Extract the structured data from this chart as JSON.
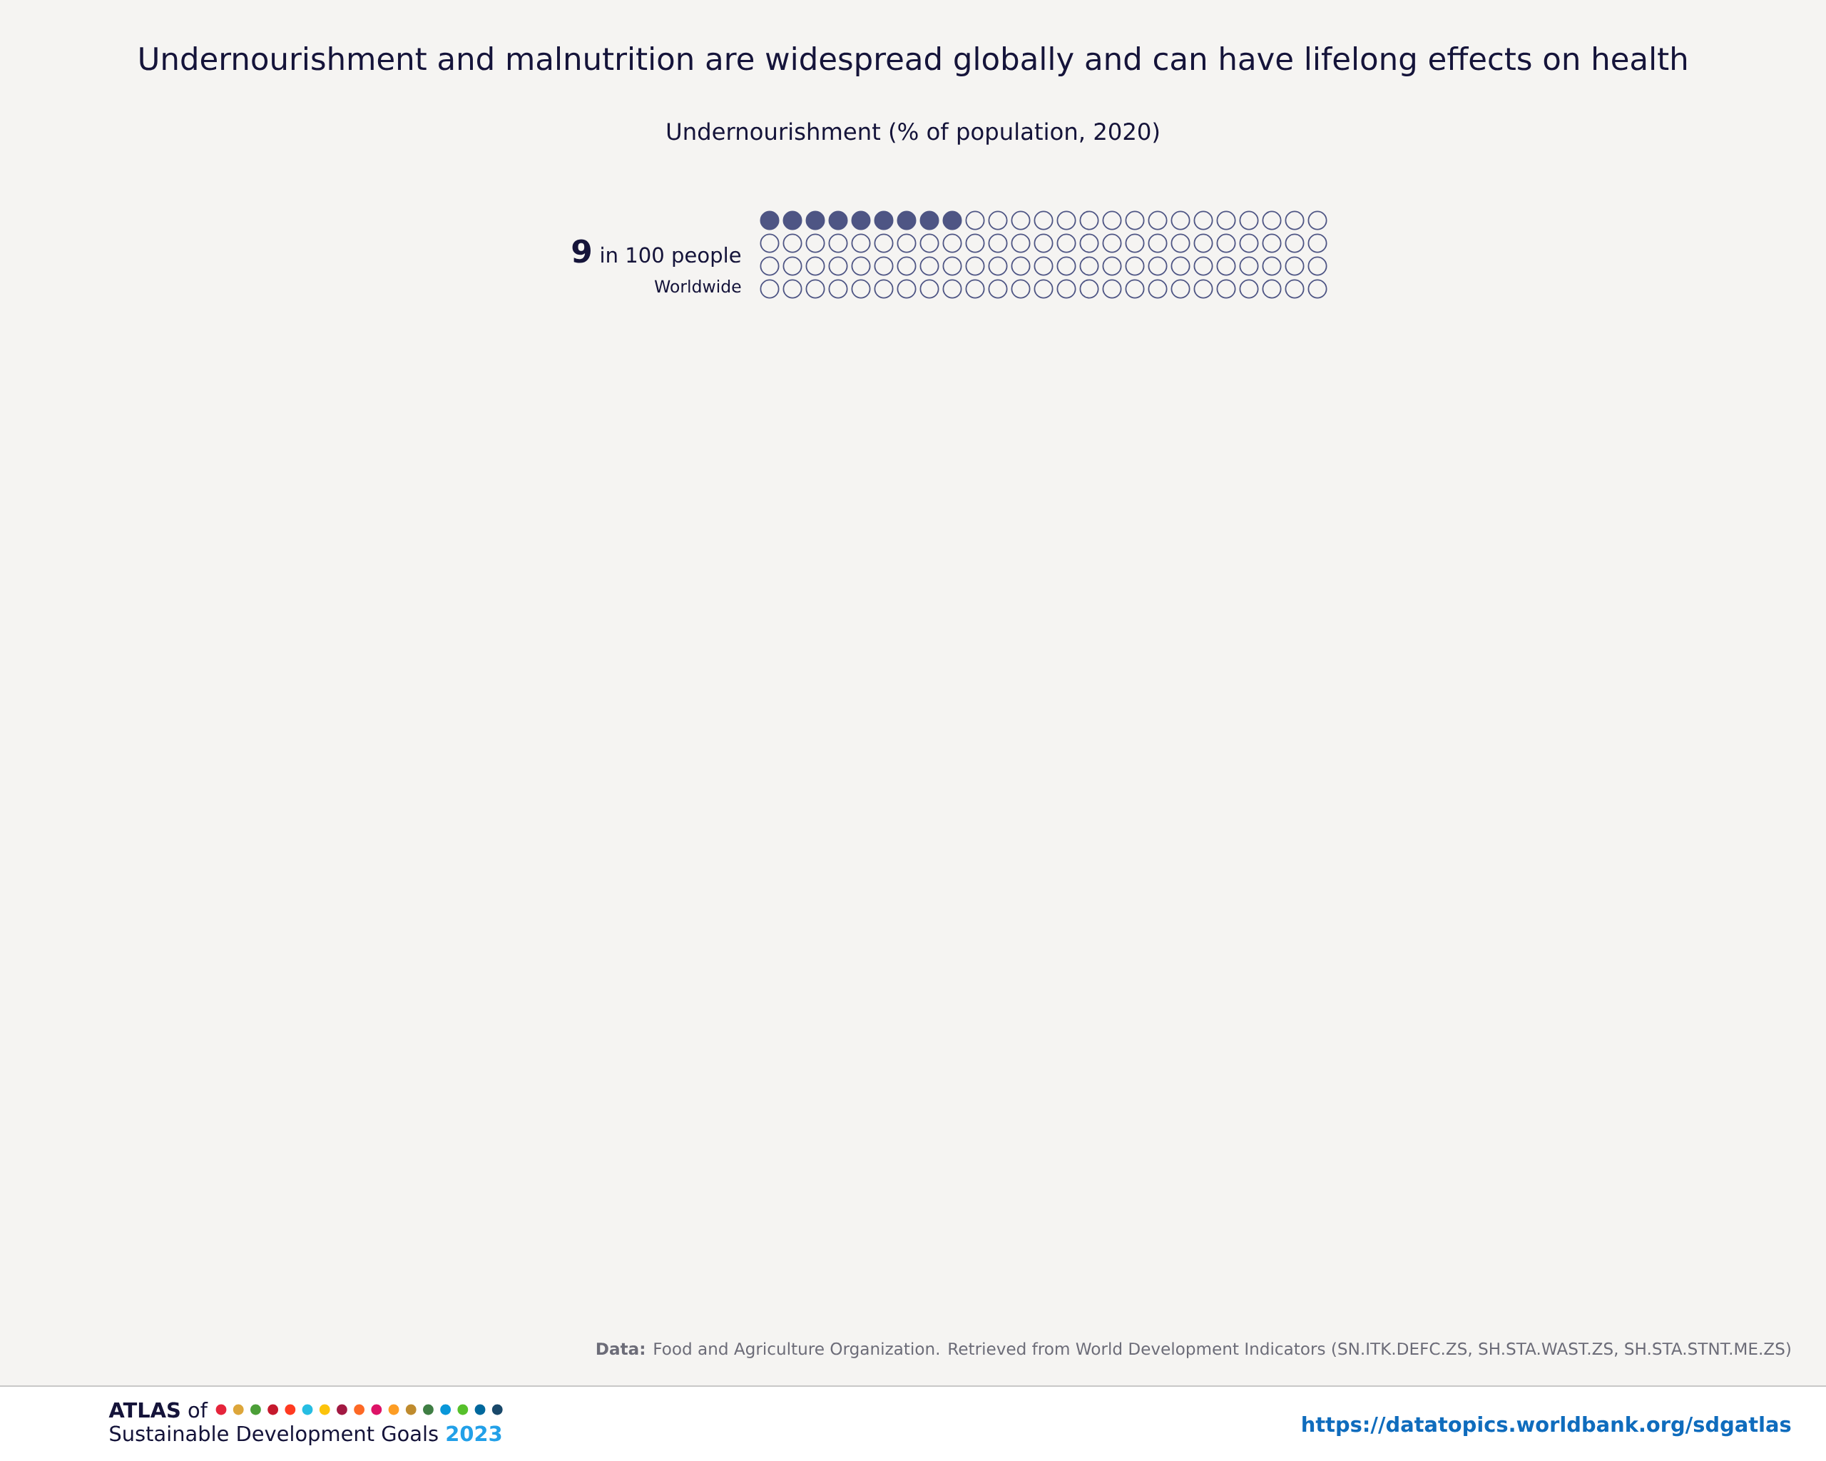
{
  "chart_data": {
    "type": "other",
    "title": "Undernourishment and malnutrition are widespread globally and can have lifelong effects on health",
    "subtitle": "Undernourishment (% of population, 2020)",
    "categories": [
      "Worldwide"
    ],
    "values": [
      9
    ],
    "value_labels": [
      "9"
    ],
    "color": "#4e5584",
    "annotations": [
      "in 100 people",
      "**ATLAS** of",
      "Sustainable Development Goals",
      "2023",
      "**Data:** Food and Agriculture Organization. Retrieved from World Development Indicators (SN.ITK.DEFC.ZS, SH.STA.WAST.ZS, SH.STA.STNT.ME.ZS)",
      "https://datatopics.worldbank.org/sdgatlas"
    ]
  }
}
